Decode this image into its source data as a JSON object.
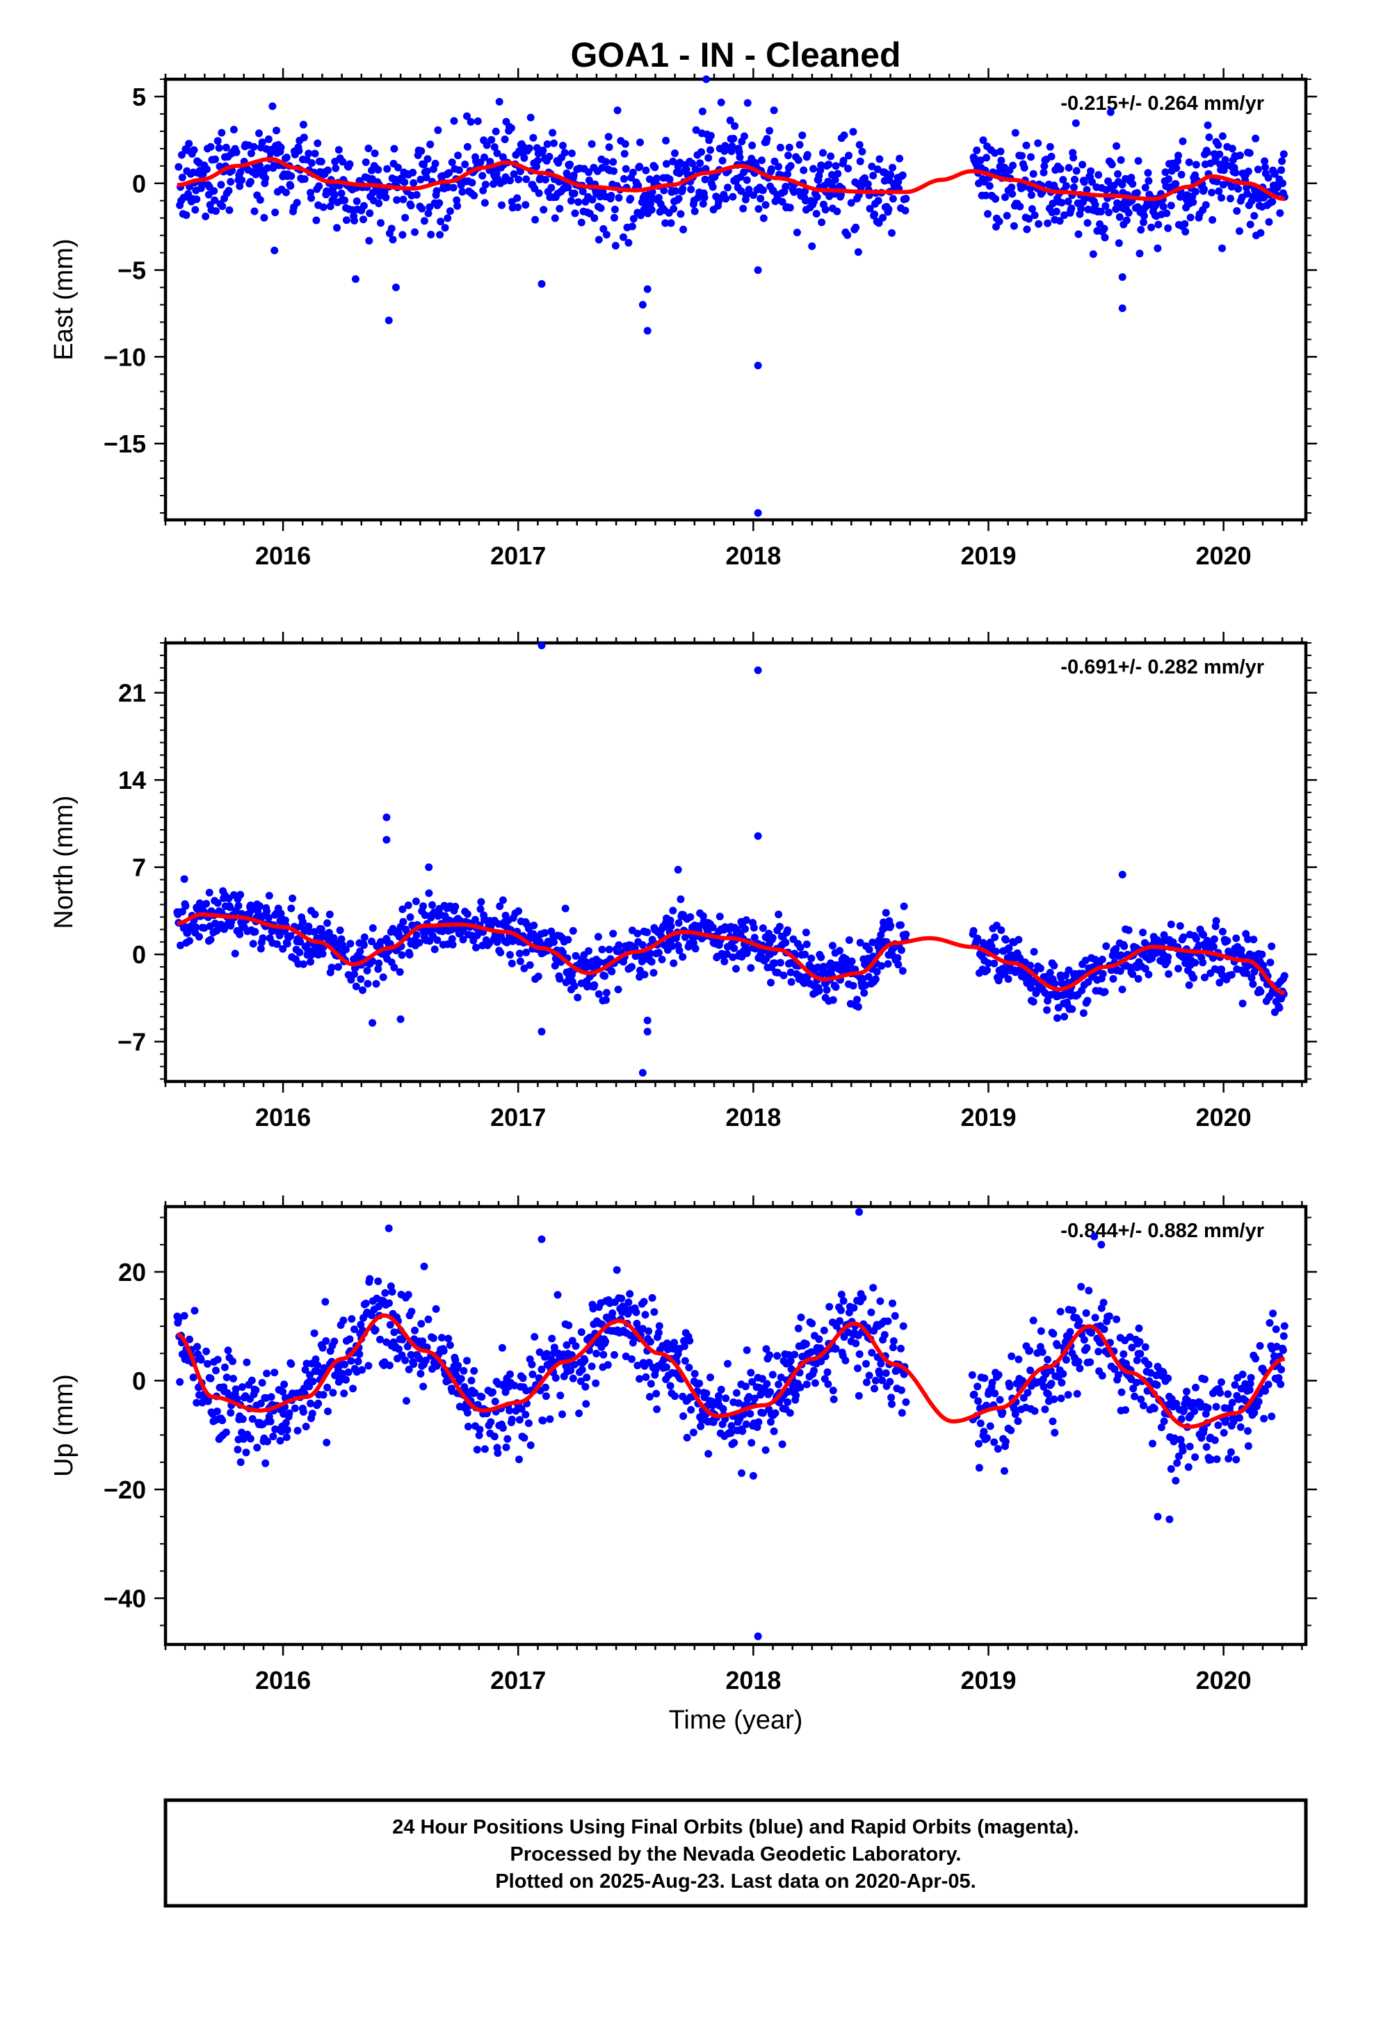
{
  "title": "GOA1  - IN - Cleaned",
  "xlabel": "Time (year)",
  "colors": {
    "final_orbits": "#0000ff",
    "rapid_orbits": "#ff00ff",
    "model": "#ff0000",
    "frame": "#000000"
  },
  "x_tick_labels": [
    "2016",
    "2017",
    "2018",
    "2019",
    "2020"
  ],
  "footer": {
    "line1": "24 Hour Positions Using Final Orbits (blue) and Rapid Orbits (magenta).",
    "line2": "Processed by the Nevada Geodetic Laboratory.",
    "line3": "Plotted on 2025-Aug-23. Last data on 2020-Apr-05."
  },
  "chart_data": [
    {
      "type": "scatter",
      "component": "east",
      "ylabel": "East (mm)",
      "rate": "-0.215+/- 0.264 mm/yr",
      "xlim": [
        2015.5,
        2020.35
      ],
      "ylim": [
        -19.4,
        6.0
      ],
      "yticks": [
        5,
        0,
        -5,
        -10,
        -15
      ],
      "ytick_labels": [
        "5",
        "0",
        "−5",
        "−10",
        "−15"
      ],
      "minor_ytick_step": 1,
      "data_span": [
        2015.55,
        2020.26
      ],
      "gap": [
        2018.65,
        2018.93
      ],
      "noise_sd": 1.3,
      "model_curve": {
        "x": [
          2015.55,
          2015.65,
          2015.8,
          2015.95,
          2016.05,
          2016.2,
          2016.35,
          2016.55,
          2016.7,
          2016.85,
          2016.95,
          2017.1,
          2017.3,
          2017.5,
          2017.65,
          2017.8,
          2017.95,
          2018.1,
          2018.3,
          2018.5,
          2018.65,
          2018.8,
          2018.93,
          2019.1,
          2019.3,
          2019.5,
          2019.7,
          2019.85,
          2019.95,
          2020.1,
          2020.26
        ],
        "y": [
          -0.1,
          0.2,
          1.0,
          1.4,
          0.9,
          0.1,
          -0.1,
          -0.3,
          0.1,
          0.9,
          1.2,
          0.6,
          -0.2,
          -0.4,
          -0.1,
          0.6,
          1.0,
          0.3,
          -0.4,
          -0.5,
          -0.5,
          0.2,
          0.7,
          0.2,
          -0.5,
          -0.7,
          -0.9,
          -0.2,
          0.4,
          0.0,
          -0.9
        ]
      },
      "outliers": {
        "x": [
          2018.02,
          2018.02,
          2018.02,
          2017.55,
          2017.53,
          2016.45,
          2016.48,
          2019.57,
          2019.57,
          2017.1,
          2017.55,
          2017.8,
          2016.92,
          2019.52
        ],
        "y": [
          -19.0,
          -10.5,
          -5.0,
          -8.5,
          -7.0,
          -7.9,
          -6.0,
          -7.2,
          -5.4,
          -5.8,
          -6.1,
          6.0,
          4.7,
          4.1
        ]
      }
    },
    {
      "type": "scatter",
      "component": "north",
      "ylabel": "North (mm)",
      "rate": "-0.691+/- 0.282 mm/yr",
      "xlim": [
        2015.5,
        2020.35
      ],
      "ylim": [
        -10.2,
        25.0
      ],
      "yticks": [
        21,
        14,
        7,
        0,
        -7
      ],
      "ytick_labels": [
        "21",
        "14",
        "7",
        "0",
        "−7"
      ],
      "minor_ytick_step": 1,
      "data_span": [
        2015.55,
        2020.26
      ],
      "gap": [
        2018.65,
        2018.93
      ],
      "noise_sd": 1.1,
      "model_curve": {
        "x": [
          2015.55,
          2015.65,
          2015.8,
          2016.0,
          2016.15,
          2016.3,
          2016.45,
          2016.6,
          2016.75,
          2016.95,
          2017.1,
          2017.3,
          2017.5,
          2017.7,
          2017.9,
          2018.1,
          2018.3,
          2018.45,
          2018.6,
          2018.75,
          2018.93,
          2019.1,
          2019.3,
          2019.5,
          2019.7,
          2019.9,
          2020.1,
          2020.26
        ],
        "y": [
          2.5,
          3.2,
          3.0,
          2.2,
          1.0,
          -0.8,
          0.5,
          2.3,
          2.4,
          1.8,
          0.5,
          -1.5,
          0.2,
          1.8,
          1.3,
          0.4,
          -2.0,
          -1.5,
          0.9,
          1.3,
          0.6,
          -0.7,
          -2.8,
          -1.0,
          0.6,
          0.2,
          -0.5,
          -3.1
        ]
      },
      "outliers": {
        "x": [
          2017.1,
          2018.02,
          2018.02,
          2016.44,
          2016.44,
          2017.53,
          2017.55,
          2017.55,
          2019.57,
          2016.38,
          2016.5,
          2017.1,
          2016.62,
          2017.68
        ],
        "y": [
          24.8,
          22.8,
          9.5,
          11.0,
          9.2,
          -9.5,
          -6.2,
          -5.3,
          6.4,
          -5.5,
          -5.2,
          -6.2,
          7.0,
          6.8
        ]
      }
    },
    {
      "type": "scatter",
      "component": "up",
      "ylabel": "Up (mm)",
      "rate": "-0.844+/- 0.882 mm/yr",
      "xlim": [
        2015.5,
        2020.35
      ],
      "ylim": [
        -48.5,
        32.0
      ],
      "yticks": [
        20,
        0,
        -20,
        -40
      ],
      "ytick_labels": [
        "20",
        "0",
        "−20",
        "−40"
      ],
      "minor_ytick_step": 5,
      "data_span": [
        2015.55,
        2020.26
      ],
      "gap": [
        2018.65,
        2018.93
      ],
      "noise_sd": 4.2,
      "model_curve": {
        "x": [
          2015.55,
          2015.7,
          2015.9,
          2016.1,
          2016.25,
          2016.43,
          2016.6,
          2016.85,
          2017.0,
          2017.2,
          2017.43,
          2017.6,
          2017.85,
          2018.05,
          2018.25,
          2018.43,
          2018.6,
          2018.85,
          2019.05,
          2019.25,
          2019.43,
          2019.6,
          2019.85,
          2020.05,
          2020.26
        ],
        "y": [
          8.5,
          -3.0,
          -5.5,
          -3.0,
          4.0,
          12.0,
          5.5,
          -5.5,
          -4.0,
          3.5,
          11.0,
          5.0,
          -6.5,
          -4.5,
          4.0,
          10.5,
          3.0,
          -7.5,
          -5.0,
          2.5,
          10.0,
          1.5,
          -8.5,
          -6.0,
          4.0
        ]
      },
      "outliers": {
        "x": [
          2018.02,
          2016.45,
          2018.45,
          2017.1,
          2019.45,
          2019.48,
          2019.72,
          2019.77,
          2016.6,
          2018.0,
          2017.95,
          2015.82
        ],
        "y": [
          -47.0,
          28.0,
          31.0,
          26.0,
          26.5,
          25.0,
          -25.0,
          -25.5,
          21.0,
          -17.5,
          -17.0,
          -15.0
        ]
      }
    }
  ]
}
